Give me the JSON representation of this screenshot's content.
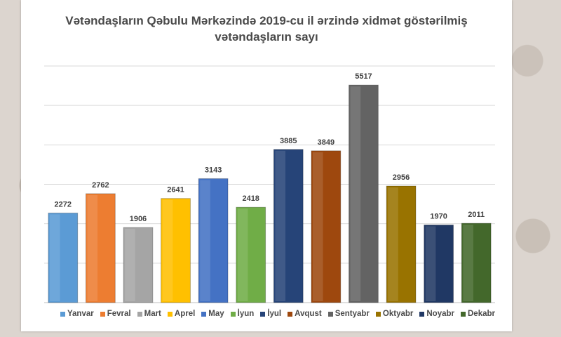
{
  "chart_data": {
    "type": "bar",
    "title_line1": "Vətəndaşların Qəbulu Mərkəzində 2019-cu il ərzində xidmət göstərilmiş",
    "title_line2": "vətəndaşların sayı",
    "categories": [
      "Yanvar",
      "Fevral",
      "Mart",
      "Aprel",
      "May",
      "İyun",
      "İyul",
      "Avqust",
      "Sentyabr",
      "Oktyabr",
      "Noyabr",
      "Dekabr"
    ],
    "values": [
      2272,
      2762,
      1906,
      2641,
      3143,
      2418,
      3885,
      3849,
      5517,
      2956,
      1970,
      2011
    ],
    "colors": [
      "#5b9bd5",
      "#ed7d31",
      "#a5a5a5",
      "#ffc000",
      "#4472c4",
      "#70ad47",
      "#264478",
      "#9e480e",
      "#636363",
      "#997300",
      "#203864",
      "#43682b"
    ],
    "ylim": [
      0,
      6000
    ],
    "grid": true,
    "legend_placement": "bottom"
  }
}
